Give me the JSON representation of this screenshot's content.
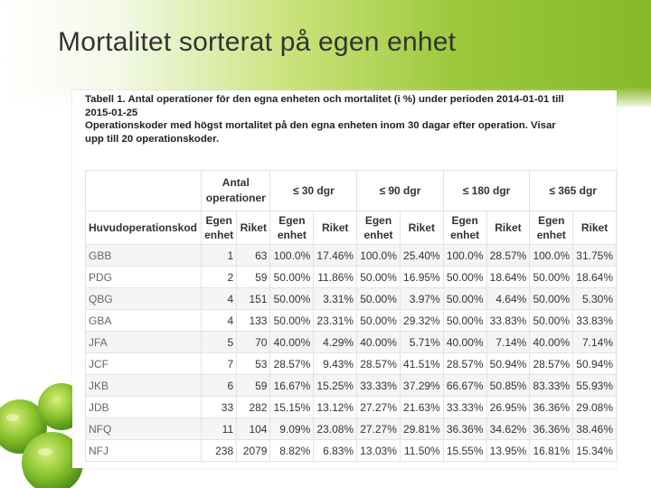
{
  "slide": {
    "title": "Mortalitet sorterat på egen enhet"
  },
  "caption": {
    "line1": "Tabell 1. Antal operationer för den egna enheten och mortalitet (i %) under perioden 2014-01-01 till",
    "line2": "2015-01-25",
    "line3": "Operationskoder med högst mortalitet på den egna enheten inom 30 dagar efter operation. Visar",
    "line4": "upp till 20 operationskoder."
  },
  "table": {
    "group_headers": [
      "Antal operationer",
      "≤ 30 dgr",
      "≤ 90 dgr",
      "≤ 180 dgr",
      "≤ 365 dgr"
    ],
    "sub_headers": [
      "Huvudoperationskod",
      "Egen enhet",
      "Riket",
      "Egen enhet",
      "Riket",
      "Egen enhet",
      "Riket",
      "Egen enhet",
      "Riket",
      "Egen enhet",
      "Riket"
    ],
    "rows": [
      [
        "GBB",
        "1",
        "63",
        "100.0%",
        "17.46%",
        "100.0%",
        "25.40%",
        "100.0%",
        "28.57%",
        "100.0%",
        "31.75%"
      ],
      [
        "PDG",
        "2",
        "59",
        "50.00%",
        "11.86%",
        "50.00%",
        "16.95%",
        "50.00%",
        "18.64%",
        "50.00%",
        "18.64%"
      ],
      [
        "QBG",
        "4",
        "151",
        "50.00%",
        "3.31%",
        "50.00%",
        "3.97%",
        "50.00%",
        "4.64%",
        "50.00%",
        "5.30%"
      ],
      [
        "GBA",
        "4",
        "133",
        "50.00%",
        "23.31%",
        "50.00%",
        "29.32%",
        "50.00%",
        "33.83%",
        "50.00%",
        "33.83%"
      ],
      [
        "JFA",
        "5",
        "70",
        "40.00%",
        "4.29%",
        "40.00%",
        "5.71%",
        "40.00%",
        "7.14%",
        "40.00%",
        "7.14%"
      ],
      [
        "JCF",
        "7",
        "53",
        "28.57%",
        "9.43%",
        "28.57%",
        "41.51%",
        "28.57%",
        "50.94%",
        "28.57%",
        "50.94%"
      ],
      [
        "JKB",
        "6",
        "59",
        "16.67%",
        "15.25%",
        "33.33%",
        "37.29%",
        "66.67%",
        "50.85%",
        "83.33%",
        "55.93%"
      ],
      [
        "JDB",
        "33",
        "282",
        "15.15%",
        "13.12%",
        "27.27%",
        "21.63%",
        "33.33%",
        "26.95%",
        "36.36%",
        "29.08%"
      ],
      [
        "NFQ",
        "11",
        "104",
        "9.09%",
        "23.08%",
        "27.27%",
        "29.81%",
        "36.36%",
        "34.62%",
        "36.36%",
        "38.46%"
      ],
      [
        "NFJ",
        "238",
        "2079",
        "8.82%",
        "6.83%",
        "13.03%",
        "11.50%",
        "15.55%",
        "13.95%",
        "16.81%",
        "15.34%"
      ]
    ]
  },
  "decor": {
    "image": "green-apples"
  }
}
